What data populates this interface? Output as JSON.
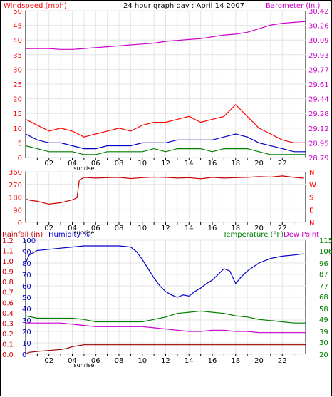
{
  "chart_data": [
    {
      "id": "wind_baro",
      "type": "line",
      "title": "24 hour graph day : April 14 2007",
      "left_axis_label": "Windspeed (mph)",
      "right_axis_label": "Barometer (in.)",
      "x_ticks": [
        "02",
        "04",
        "06",
        "08",
        "10",
        "12",
        "14",
        "16",
        "18",
        "20",
        "22"
      ],
      "x_range_hours": [
        0,
        24
      ],
      "left_ylim": [
        0,
        50
      ],
      "left_ticks": [
        0,
        5,
        10,
        15,
        20,
        25,
        30,
        35,
        40,
        45,
        50
      ],
      "right_ticks": [
        "28.79",
        "28.95",
        "29.12",
        "29.28",
        "29.44",
        "29.61",
        "29.77",
        "29.93",
        "30.09",
        "30.26",
        "30.42"
      ],
      "right_ylim": [
        28.79,
        30.42
      ],
      "sunrise_label": "sunrise",
      "colors": {
        "left": "#ff0000",
        "right": "#cc00cc",
        "gust": "#ff0000",
        "avg": "#0000cc",
        "min": "#008000",
        "baro": "#cc00cc"
      },
      "series": [
        {
          "key": "gust",
          "x": [
            0,
            1,
            2,
            3,
            4,
            5,
            6,
            7,
            8,
            9,
            10,
            11,
            12,
            13,
            14,
            15,
            16,
            17,
            18,
            19,
            20,
            21,
            22,
            23,
            24
          ],
          "values": [
            13,
            11,
            9,
            10,
            9,
            7,
            8,
            9,
            10,
            9,
            11,
            12,
            12,
            13,
            14,
            12,
            13,
            14,
            18,
            14,
            10,
            8,
            6,
            5,
            5
          ]
        },
        {
          "key": "avg",
          "x": [
            0,
            1,
            2,
            3,
            4,
            5,
            6,
            7,
            8,
            9,
            10,
            11,
            12,
            13,
            14,
            15,
            16,
            17,
            18,
            19,
            20,
            21,
            22,
            23,
            24
          ],
          "values": [
            8,
            6,
            5,
            5,
            4,
            3,
            3,
            4,
            4,
            4,
            5,
            5,
            5,
            6,
            6,
            6,
            6,
            7,
            8,
            7,
            5,
            4,
            3,
            2,
            2
          ]
        },
        {
          "key": "min",
          "x": [
            0,
            1,
            2,
            3,
            4,
            5,
            6,
            7,
            8,
            9,
            10,
            11,
            12,
            13,
            14,
            15,
            16,
            17,
            18,
            19,
            20,
            21,
            22,
            23,
            24
          ],
          "values": [
            4,
            3,
            2,
            2,
            2,
            1,
            1,
            2,
            2,
            2,
            2,
            3,
            2,
            3,
            3,
            3,
            2,
            3,
            3,
            3,
            2,
            1,
            1,
            1,
            1
          ]
        },
        {
          "key": "baro",
          "x": [
            0,
            1,
            2,
            3,
            4,
            5,
            6,
            7,
            8,
            9,
            10,
            11,
            12,
            13,
            14,
            15,
            16,
            17,
            18,
            19,
            20,
            21,
            22,
            23,
            24
          ],
          "values": [
            30.0,
            30.0,
            30.0,
            29.99,
            29.99,
            30.0,
            30.01,
            30.02,
            30.03,
            30.04,
            30.05,
            30.06,
            30.08,
            30.09,
            30.1,
            30.11,
            30.13,
            30.15,
            30.16,
            30.18,
            30.22,
            30.26,
            30.28,
            30.29,
            30.3
          ]
        }
      ]
    },
    {
      "id": "wind_dir",
      "type": "line",
      "left_ticks": [
        0,
        90,
        180,
        270,
        360
      ],
      "left_ylim": [
        0,
        360
      ],
      "right_ticks": [
        "N",
        "W",
        "S",
        "E",
        "N"
      ],
      "x_ticks": [
        "02",
        "04",
        "06",
        "08",
        "10",
        "12",
        "14",
        "16",
        "18",
        "20",
        "22"
      ],
      "sunrise_label": "sunrise",
      "colors": {
        "dir": "#cc0000",
        "left": "#ff0000",
        "right": "#ff0000"
      },
      "series": [
        {
          "key": "dir",
          "x": [
            0,
            0.5,
            1,
            1.5,
            2,
            2.5,
            3,
            3.5,
            4,
            4.4,
            4.6,
            5,
            6,
            7,
            8,
            9,
            10,
            11,
            12,
            13,
            14,
            15,
            16,
            17,
            18,
            19,
            20,
            21,
            22,
            23,
            23.8
          ],
          "values": [
            165,
            155,
            150,
            140,
            130,
            135,
            140,
            150,
            160,
            175,
            300,
            320,
            315,
            318,
            320,
            312,
            318,
            322,
            320,
            315,
            318,
            310,
            320,
            315,
            318,
            320,
            325,
            322,
            330,
            320,
            315
          ]
        }
      ]
    },
    {
      "id": "rain_hum_temp",
      "type": "line",
      "left_label_1": "Rainfall (in)",
      "left_label_2": "Humidity %",
      "right_label_1": "Temperature (°F)",
      "right_label_2": "Dew Point",
      "rain_ticks": [
        "0.0",
        "0.1",
        "0.2",
        "0.3",
        "0.4",
        "0.6",
        "0.7",
        "0.8",
        "0.9",
        "1.0",
        "1.1",
        "1.2"
      ],
      "hum_ticks": [
        0,
        10,
        20,
        30,
        40,
        50,
        60,
        70,
        80,
        90,
        100
      ],
      "right_ticks": [
        20,
        30,
        39,
        49,
        58,
        68,
        77,
        87,
        96,
        106,
        115
      ],
      "hum_ylim": [
        0,
        100
      ],
      "right_ylim": [
        20,
        115
      ],
      "x_ticks": [
        "02",
        "04",
        "06",
        "08",
        "10",
        "12",
        "14",
        "16",
        "18",
        "20",
        "22"
      ],
      "sunrise_label": "sunrise",
      "colors": {
        "rain_label": "#cc0000",
        "hum_label": "#0000cc",
        "temp_label": "#008000",
        "dew_label": "#cc00cc",
        "rain": "#990000",
        "hum": "#0000cc",
        "temp": "#008000",
        "dew": "#cc00cc"
      },
      "series": [
        {
          "key": "hum",
          "x": [
            0,
            0.3,
            1,
            2,
            3,
            4,
            5,
            6,
            7,
            8,
            9,
            9.5,
            10,
            10.5,
            11,
            11.5,
            12,
            12.5,
            13,
            13.5,
            14,
            14.5,
            15,
            15.5,
            16,
            16.5,
            17,
            17.5,
            18,
            18.5,
            19,
            20,
            21,
            22,
            23,
            23.8
          ],
          "values": [
            80,
            87,
            91,
            92,
            93,
            94,
            95,
            95,
            95,
            95,
            94,
            90,
            83,
            75,
            67,
            60,
            55,
            52,
            50,
            52,
            51,
            55,
            58,
            62,
            65,
            70,
            75,
            73,
            62,
            68,
            73,
            80,
            84,
            86,
            87,
            88
          ]
        },
        {
          "key": "temp",
          "x": [
            0,
            1,
            2,
            3,
            4,
            5,
            6,
            7,
            8,
            9,
            10,
            11,
            12,
            13,
            14,
            15,
            16,
            17,
            18,
            19,
            20,
            21,
            22,
            23,
            24
          ],
          "values": [
            52,
            50,
            50,
            50,
            50,
            49,
            47,
            47,
            47,
            47,
            47,
            49,
            51,
            54,
            55,
            56,
            55,
            54,
            52,
            51,
            49,
            48,
            47,
            46,
            46
          ]
        },
        {
          "key": "dew",
          "x": [
            0,
            1,
            2,
            3,
            4,
            5,
            6,
            7,
            8,
            9,
            10,
            11,
            12,
            13,
            14,
            15,
            16,
            17,
            18,
            19,
            20,
            21,
            22,
            23,
            24
          ],
          "values": [
            46,
            46,
            46,
            46,
            45,
            44,
            43,
            43,
            43,
            43,
            43,
            42,
            41,
            40,
            39,
            39,
            40,
            40,
            39,
            39,
            38,
            38,
            38,
            38,
            38
          ]
        },
        {
          "key": "rain",
          "x": [
            0,
            0.3,
            1,
            2,
            3,
            3.5,
            4,
            4.5,
            5,
            24
          ],
          "values": [
            0.0,
            0.02,
            0.03,
            0.04,
            0.05,
            0.06,
            0.08,
            0.09,
            0.1,
            0.1
          ]
        }
      ]
    }
  ]
}
